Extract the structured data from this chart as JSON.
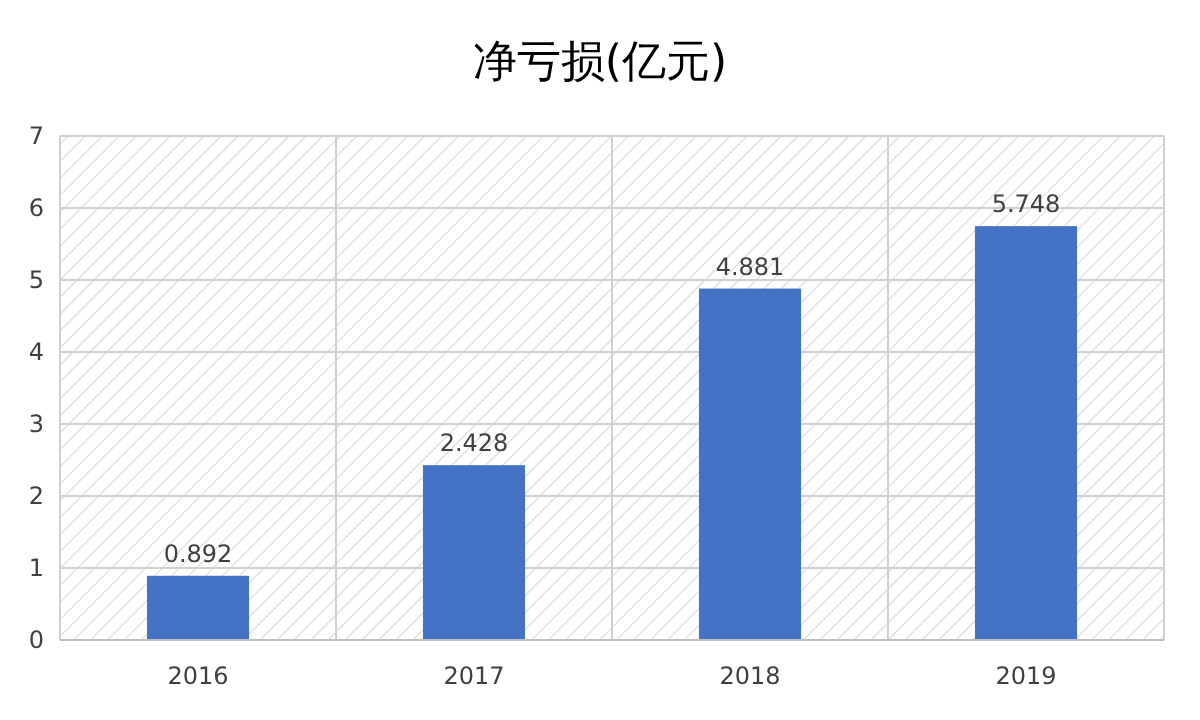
{
  "chart_data": {
    "type": "bar",
    "title": "净亏损(亿元)",
    "categories": [
      "2016",
      "2017",
      "2018",
      "2019"
    ],
    "values": [
      0.892,
      2.428,
      4.881,
      5.748
    ],
    "color": "#4472c4",
    "ylim": [
      0,
      7
    ],
    "yticks": [
      0,
      1,
      2,
      3,
      4,
      5,
      6,
      7
    ],
    "grid": true,
    "data_labels": true
  }
}
